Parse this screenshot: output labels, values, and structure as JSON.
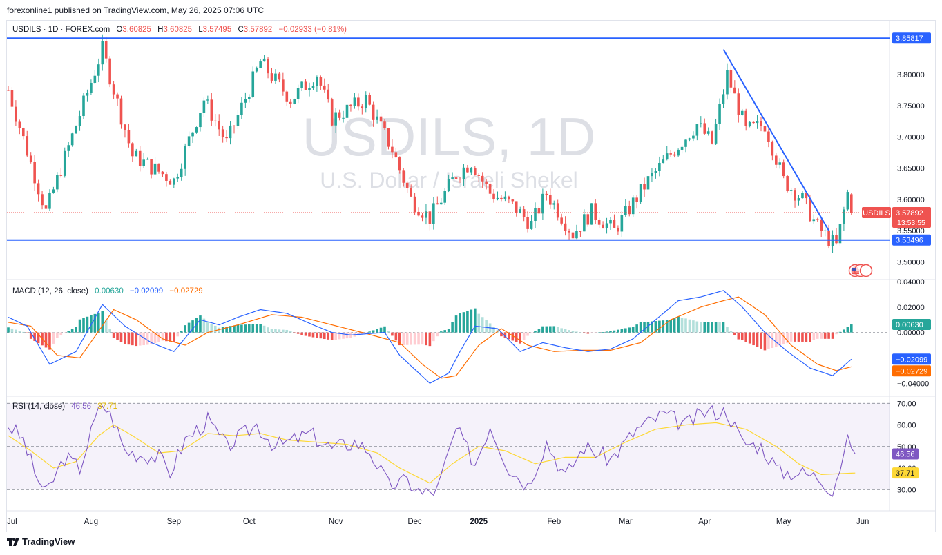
{
  "header": {
    "published": "forexonline1 published on TradingView.com, May 26, 2025 07:06 UTC"
  },
  "footer": {
    "brand": "TradingView"
  },
  "colors": {
    "up": "#26a69a",
    "down": "#ef5350",
    "line": "#2962ff",
    "signal": "#ff6d00",
    "rsi": "#7e57c2",
    "rsi_ma": "#fdd835"
  },
  "chart_data": {
    "type": "candlestick",
    "symbol_line": {
      "symbol": "USDILS · 1D · FOREX.com",
      "o_label": "O",
      "o_value": "3.60825",
      "h_label": "H",
      "h_value": "3.60825",
      "l_label": "L",
      "l_value": "3.57495",
      "c_label": "C",
      "c_value": "3.57892",
      "change": "−0.02933 (−0.81%)"
    },
    "watermark": {
      "title": "USDILS, 1D",
      "subtitle": "U.S. Dollar / Israeli Shekel"
    },
    "price_axis": {
      "range": [
        3.475,
        3.875
      ],
      "ticks": [
        "3.80000",
        "3.75000",
        "3.70000",
        "3.65000",
        "3.60000",
        "3.55000",
        "3.50000"
      ],
      "tick_values": [
        3.8,
        3.75,
        3.7,
        3.65,
        3.6,
        3.55,
        3.5
      ]
    },
    "x_axis": {
      "labels": [
        "Jul",
        "Aug",
        "Sep",
        "Oct",
        "Nov",
        "Dec",
        "2025",
        "Feb",
        "Mar",
        "Apr",
        "May",
        "Jun"
      ],
      "label_day_index": [
        0,
        22,
        44,
        64,
        87,
        108,
        125,
        145,
        164,
        185,
        206,
        227
      ]
    },
    "horizontal_lines": [
      {
        "value": 3.85817,
        "label": "3.85817"
      },
      {
        "value": 3.53496,
        "label": "3.53496"
      }
    ],
    "trendline": {
      "start": {
        "day": 190,
        "price": 3.84
      },
      "end": {
        "day": 218,
        "price": 3.55
      }
    },
    "last_price": {
      "symbol": "USDILS",
      "value": 3.57892,
      "label": "3.57892",
      "countdown": "13:53:55"
    },
    "key_closes": [
      {
        "day": 0,
        "close": 3.775
      },
      {
        "day": 10,
        "close": 3.58
      },
      {
        "day": 25,
        "close": 3.84
      },
      {
        "day": 33,
        "close": 3.67
      },
      {
        "day": 44,
        "close": 3.63
      },
      {
        "day": 52,
        "close": 3.76
      },
      {
        "day": 58,
        "close": 3.69
      },
      {
        "day": 67,
        "close": 3.82
      },
      {
        "day": 75,
        "close": 3.76
      },
      {
        "day": 82,
        "close": 3.8
      },
      {
        "day": 86,
        "close": 3.73
      },
      {
        "day": 95,
        "close": 3.76
      },
      {
        "day": 102,
        "close": 3.68
      },
      {
        "day": 107,
        "close": 3.6
      },
      {
        "day": 112,
        "close": 3.57
      },
      {
        "day": 119,
        "close": 3.64
      },
      {
        "day": 123,
        "close": 3.66
      },
      {
        "day": 128,
        "close": 3.61
      },
      {
        "day": 134,
        "close": 3.59
      },
      {
        "day": 139,
        "close": 3.56
      },
      {
        "day": 143,
        "close": 3.61
      },
      {
        "day": 150,
        "close": 3.545
      },
      {
        "day": 155,
        "close": 3.58
      },
      {
        "day": 161,
        "close": 3.55
      },
      {
        "day": 170,
        "close": 3.63
      },
      {
        "day": 177,
        "close": 3.68
      },
      {
        "day": 183,
        "close": 3.72
      },
      {
        "day": 187,
        "close": 3.69
      },
      {
        "day": 191,
        "close": 3.8
      },
      {
        "day": 196,
        "close": 3.71
      },
      {
        "day": 201,
        "close": 3.72
      },
      {
        "day": 206,
        "close": 3.63
      },
      {
        "day": 211,
        "close": 3.6
      },
      {
        "day": 215,
        "close": 3.555
      },
      {
        "day": 220,
        "close": 3.525
      },
      {
        "day": 223,
        "close": 3.61
      },
      {
        "day": 224,
        "close": 3.579
      }
    ],
    "macd": {
      "label": "MACD (12, 26, close)",
      "values": [
        "0.00630",
        "−0.02099",
        "−0.02729"
      ],
      "range": [
        -0.048,
        0.04
      ],
      "ticks": [
        "0.04000",
        "0.02000",
        "0.00000",
        "−0.04000"
      ],
      "tick_values": [
        0.04,
        0.02,
        0.0,
        -0.04
      ],
      "badges": [
        {
          "label": "0.00630",
          "value": 0.0063,
          "color": "#26a69a"
        },
        {
          "label": "−0.02099",
          "value": -0.02099,
          "color": "#2962ff"
        },
        {
          "label": "−0.02729",
          "value": -0.02729,
          "color": "#ff6d00"
        }
      ],
      "macd_key": [
        {
          "day": 0,
          "v": 0.012
        },
        {
          "day": 5,
          "v": 0.005
        },
        {
          "day": 11,
          "v": -0.025
        },
        {
          "day": 18,
          "v": -0.015
        },
        {
          "day": 25,
          "v": 0.022
        },
        {
          "day": 31,
          "v": 0.005
        },
        {
          "day": 38,
          "v": -0.008
        },
        {
          "day": 44,
          "v": -0.015
        },
        {
          "day": 51,
          "v": 0.01
        },
        {
          "day": 56,
          "v": 0.006
        },
        {
          "day": 61,
          "v": 0.012
        },
        {
          "day": 67,
          "v": 0.018
        },
        {
          "day": 74,
          "v": 0.015
        },
        {
          "day": 81,
          "v": 0.006
        },
        {
          "day": 86,
          "v": 0.0
        },
        {
          "day": 91,
          "v": -0.002
        },
        {
          "day": 100,
          "v": 0.0
        },
        {
          "day": 104,
          "v": -0.018
        },
        {
          "day": 112,
          "v": -0.04
        },
        {
          "day": 117,
          "v": -0.032
        },
        {
          "day": 120,
          "v": -0.015
        },
        {
          "day": 124,
          "v": 0.005
        },
        {
          "day": 130,
          "v": 0.003
        },
        {
          "day": 136,
          "v": -0.015
        },
        {
          "day": 142,
          "v": -0.008
        },
        {
          "day": 148,
          "v": -0.012
        },
        {
          "day": 154,
          "v": -0.015
        },
        {
          "day": 160,
          "v": -0.013
        },
        {
          "day": 166,
          "v": -0.005
        },
        {
          "day": 172,
          "v": 0.01
        },
        {
          "day": 178,
          "v": 0.025
        },
        {
          "day": 184,
          "v": 0.028
        },
        {
          "day": 190,
          "v": 0.033
        },
        {
          "day": 195,
          "v": 0.02
        },
        {
          "day": 201,
          "v": 0.0
        },
        {
          "day": 207,
          "v": -0.015
        },
        {
          "day": 213,
          "v": -0.028
        },
        {
          "day": 219,
          "v": -0.034
        },
        {
          "day": 224,
          "v": -0.021
        }
      ],
      "signal_key": [
        {
          "day": 0,
          "v": 0.008
        },
        {
          "day": 6,
          "v": 0.005
        },
        {
          "day": 13,
          "v": -0.018
        },
        {
          "day": 19,
          "v": -0.02
        },
        {
          "day": 28,
          "v": 0.018
        },
        {
          "day": 34,
          "v": 0.01
        },
        {
          "day": 41,
          "v": -0.005
        },
        {
          "day": 47,
          "v": -0.01
        },
        {
          "day": 53,
          "v": 0.0
        },
        {
          "day": 61,
          "v": 0.006
        },
        {
          "day": 70,
          "v": 0.014
        },
        {
          "day": 78,
          "v": 0.012
        },
        {
          "day": 86,
          "v": 0.006
        },
        {
          "day": 94,
          "v": 0.0
        },
        {
          "day": 104,
          "v": -0.008
        },
        {
          "day": 110,
          "v": -0.025
        },
        {
          "day": 115,
          "v": -0.036
        },
        {
          "day": 119,
          "v": -0.034
        },
        {
          "day": 125,
          "v": -0.01
        },
        {
          "day": 131,
          "v": 0.003
        },
        {
          "day": 138,
          "v": -0.01
        },
        {
          "day": 145,
          "v": -0.015
        },
        {
          "day": 152,
          "v": -0.014
        },
        {
          "day": 160,
          "v": -0.014
        },
        {
          "day": 168,
          "v": -0.008
        },
        {
          "day": 176,
          "v": 0.01
        },
        {
          "day": 184,
          "v": 0.02
        },
        {
          "day": 190,
          "v": 0.025
        },
        {
          "day": 194,
          "v": 0.028
        },
        {
          "day": 201,
          "v": 0.014
        },
        {
          "day": 208,
          "v": -0.01
        },
        {
          "day": 215,
          "v": -0.025
        },
        {
          "day": 220,
          "v": -0.03
        },
        {
          "day": 224,
          "v": -0.027
        }
      ]
    },
    "rsi": {
      "label": "RSI (14, close)",
      "values": [
        "46.56",
        "37.71"
      ],
      "range": [
        24,
        72
      ],
      "ticks": [
        "70.00",
        "60.00",
        "50.00",
        "40.00",
        "30.00"
      ],
      "tick_values": [
        70,
        60,
        50,
        40,
        30
      ],
      "band": [
        30,
        70
      ],
      "badges": [
        {
          "label": "46.56",
          "value": 46.56,
          "color": "#7e57c2"
        },
        {
          "label": "37.71",
          "value": 37.71,
          "color": "#fdd835"
        }
      ],
      "rsi_key": [
        {
          "day": 0,
          "v": 60
        },
        {
          "day": 4,
          "v": 53
        },
        {
          "day": 7,
          "v": 38
        },
        {
          "day": 10,
          "v": 28
        },
        {
          "day": 15,
          "v": 45
        },
        {
          "day": 19,
          "v": 40
        },
        {
          "day": 23,
          "v": 62
        },
        {
          "day": 25,
          "v": 70
        },
        {
          "day": 28,
          "v": 62
        },
        {
          "day": 31,
          "v": 48
        },
        {
          "day": 36,
          "v": 46
        },
        {
          "day": 40,
          "v": 45
        },
        {
          "day": 43,
          "v": 38
        },
        {
          "day": 47,
          "v": 53
        },
        {
          "day": 53,
          "v": 62
        },
        {
          "day": 58,
          "v": 50
        },
        {
          "day": 62,
          "v": 55
        },
        {
          "day": 66,
          "v": 60
        },
        {
          "day": 71,
          "v": 50
        },
        {
          "day": 76,
          "v": 53
        },
        {
          "day": 80,
          "v": 56
        },
        {
          "day": 86,
          "v": 49
        },
        {
          "day": 92,
          "v": 52
        },
        {
          "day": 96,
          "v": 48
        },
        {
          "day": 101,
          "v": 32
        },
        {
          "day": 106,
          "v": 34
        },
        {
          "day": 110,
          "v": 28
        },
        {
          "day": 114,
          "v": 30
        },
        {
          "day": 119,
          "v": 58
        },
        {
          "day": 124,
          "v": 42
        },
        {
          "day": 128,
          "v": 60
        },
        {
          "day": 133,
          "v": 40
        },
        {
          "day": 138,
          "v": 32
        },
        {
          "day": 143,
          "v": 52
        },
        {
          "day": 148,
          "v": 36
        },
        {
          "day": 153,
          "v": 50
        },
        {
          "day": 160,
          "v": 44
        },
        {
          "day": 167,
          "v": 58
        },
        {
          "day": 174,
          "v": 65
        },
        {
          "day": 180,
          "v": 60
        },
        {
          "day": 185,
          "v": 66
        },
        {
          "day": 191,
          "v": 66
        },
        {
          "day": 195,
          "v": 52
        },
        {
          "day": 200,
          "v": 50
        },
        {
          "day": 205,
          "v": 38
        },
        {
          "day": 210,
          "v": 38
        },
        {
          "day": 215,
          "v": 36
        },
        {
          "day": 219,
          "v": 30
        },
        {
          "day": 223,
          "v": 52
        },
        {
          "day": 225,
          "v": 46.56
        }
      ],
      "ma_key": [
        {
          "day": 0,
          "v": 55
        },
        {
          "day": 6,
          "v": 48
        },
        {
          "day": 12,
          "v": 40
        },
        {
          "day": 18,
          "v": 43
        },
        {
          "day": 24,
          "v": 55
        },
        {
          "day": 28,
          "v": 60
        },
        {
          "day": 33,
          "v": 55
        },
        {
          "day": 40,
          "v": 47
        },
        {
          "day": 46,
          "v": 48
        },
        {
          "day": 53,
          "v": 56
        },
        {
          "day": 60,
          "v": 55
        },
        {
          "day": 67,
          "v": 56
        },
        {
          "day": 74,
          "v": 53
        },
        {
          "day": 82,
          "v": 52
        },
        {
          "day": 90,
          "v": 51
        },
        {
          "day": 98,
          "v": 47
        },
        {
          "day": 104,
          "v": 40
        },
        {
          "day": 112,
          "v": 33
        },
        {
          "day": 118,
          "v": 42
        },
        {
          "day": 125,
          "v": 50
        },
        {
          "day": 132,
          "v": 48
        },
        {
          "day": 140,
          "v": 42
        },
        {
          "day": 148,
          "v": 45
        },
        {
          "day": 156,
          "v": 45
        },
        {
          "day": 164,
          "v": 52
        },
        {
          "day": 172,
          "v": 58
        },
        {
          "day": 180,
          "v": 60
        },
        {
          "day": 188,
          "v": 61
        },
        {
          "day": 196,
          "v": 58
        },
        {
          "day": 204,
          "v": 50
        },
        {
          "day": 210,
          "v": 42
        },
        {
          "day": 216,
          "v": 37
        },
        {
          "day": 225,
          "v": 37.71
        }
      ]
    }
  }
}
